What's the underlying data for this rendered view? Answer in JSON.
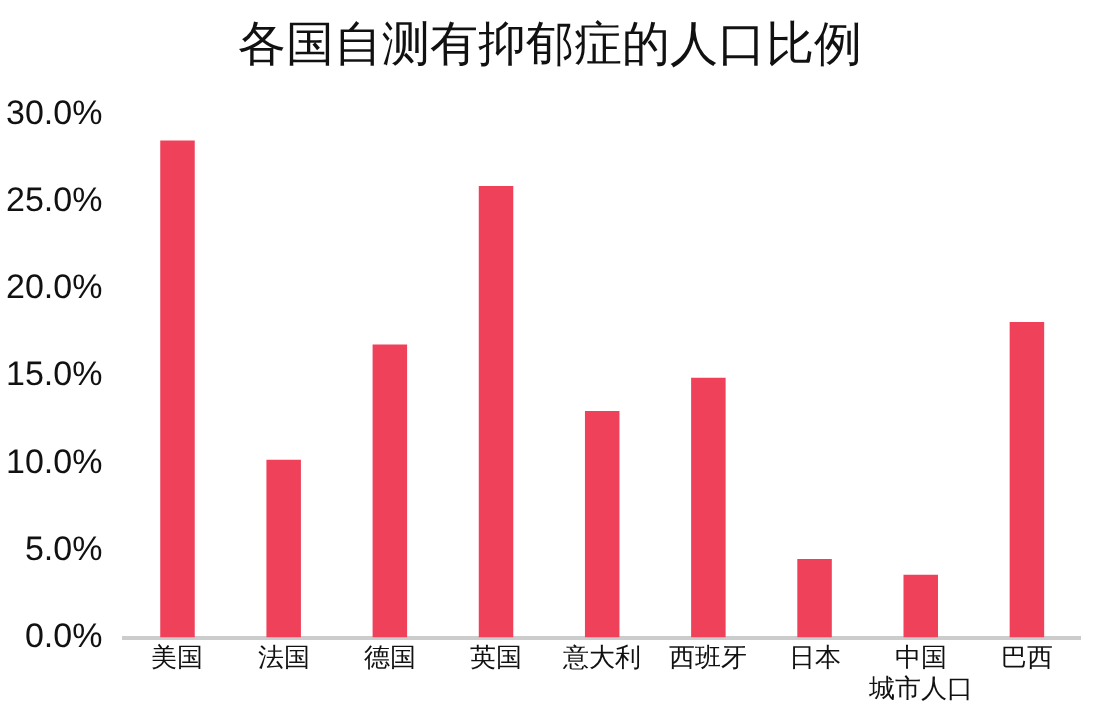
{
  "chart_data": {
    "type": "bar",
    "title": "各国自测有抑郁症的人口比例",
    "categories": [
      "美国",
      "法国",
      "德国",
      "英国",
      "意大利",
      "西班牙",
      "日本",
      "中国城市人口",
      "巴西"
    ],
    "values": [
      28.5,
      10.2,
      16.8,
      25.9,
      13.0,
      14.9,
      4.5,
      3.6,
      18.1
    ],
    "color": "#ef4159",
    "ylim": [
      0,
      30
    ],
    "yticks": [
      {
        "value": 0,
        "label": "0.0%"
      },
      {
        "value": 5,
        "label": "5.0%"
      },
      {
        "value": 10,
        "label": "10.0%"
      },
      {
        "value": 15,
        "label": "15.0%"
      },
      {
        "value": 20,
        "label": "20.0%"
      },
      {
        "value": 25,
        "label": "25.0%"
      },
      {
        "value": 30,
        "label": "30.0%"
      }
    ],
    "grid": false,
    "legend": false
  }
}
